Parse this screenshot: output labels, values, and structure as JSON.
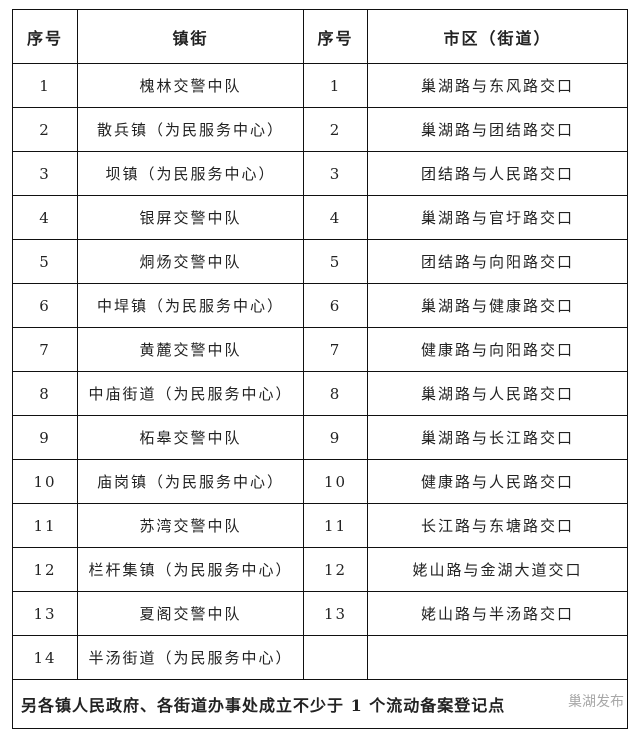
{
  "headers": [
    "序号",
    "镇街",
    "序号",
    "市区（街道）"
  ],
  "rows": [
    {
      "n1": "1",
      "town": "槐林交警中队",
      "n2": "1",
      "city": "巢湖路与东风路交口"
    },
    {
      "n1": "2",
      "town": "散兵镇（为民服务中心）",
      "n2": "2",
      "city": "巢湖路与团结路交口"
    },
    {
      "n1": "3",
      "town": "坝镇（为民服务中心）",
      "n2": "3",
      "city": "团结路与人民路交口"
    },
    {
      "n1": "4",
      "town": "银屏交警中队",
      "n2": "4",
      "city": "巢湖路与官圩路交口"
    },
    {
      "n1": "5",
      "town": "烔炀交警中队",
      "n2": "5",
      "city": "团结路与向阳路交口"
    },
    {
      "n1": "6",
      "town": "中垾镇（为民服务中心）",
      "n2": "6",
      "city": "巢湖路与健康路交口"
    },
    {
      "n1": "7",
      "town": "黄麓交警中队",
      "n2": "7",
      "city": "健康路与向阳路交口"
    },
    {
      "n1": "8",
      "town": "中庙街道（为民服务中心）",
      "n2": "8",
      "city": "巢湖路与人民路交口"
    },
    {
      "n1": "9",
      "town": "柘皋交警中队",
      "n2": "9",
      "city": "巢湖路与长江路交口"
    },
    {
      "n1": "10",
      "town": "庙岗镇（为民服务中心）",
      "n2": "10",
      "city": "健康路与人民路交口"
    },
    {
      "n1": "11",
      "town": "苏湾交警中队",
      "n2": "11",
      "city": "长江路与东塘路交口"
    },
    {
      "n1": "12",
      "town": "栏杆集镇（为民服务中心）",
      "n2": "12",
      "city": "姥山路与金湖大道交口"
    },
    {
      "n1": "13",
      "town": "夏阁交警中队",
      "n2": "13",
      "city": "姥山路与半汤路交口"
    },
    {
      "n1": "14",
      "town": "半汤街道（为民服务中心）",
      "n2": "",
      "city": ""
    }
  ],
  "footer": "另各镇人民政府、各街道办事处成立不少于 1 个流动备案登记点",
  "watermark": "巢湖发布"
}
